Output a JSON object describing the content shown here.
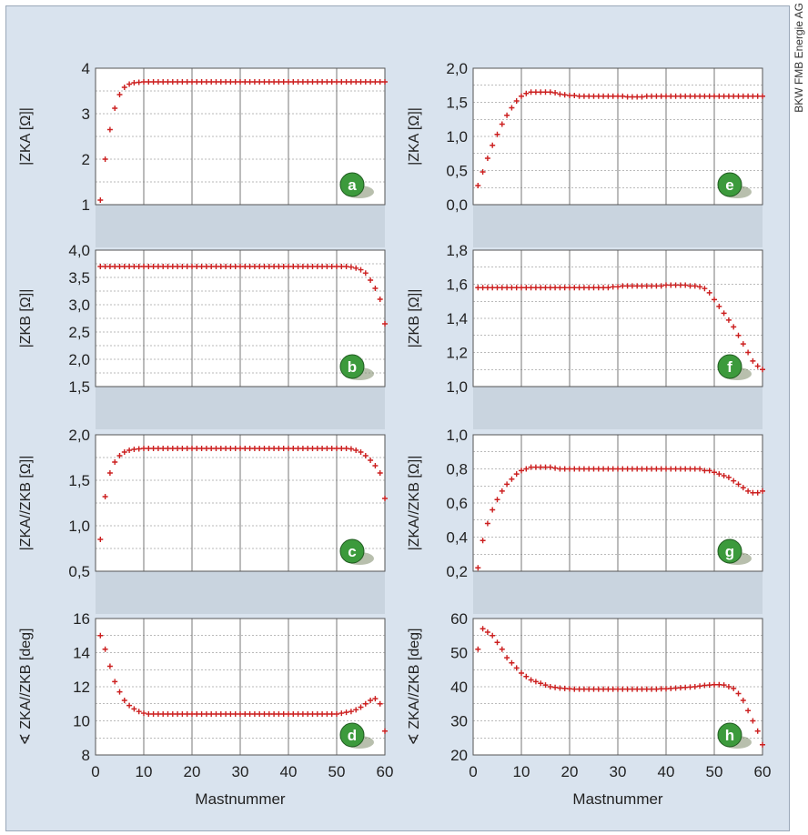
{
  "credit": "BKW FMB Energie AG",
  "colors": {
    "marker": "#cc1f1f",
    "badge": "#3c9a3c",
    "band": "#c9d4df",
    "panel": "#ffffff",
    "background": "#d9e3ee"
  },
  "chart_data": [
    {
      "id": "a",
      "type": "scatter",
      "badge": "a",
      "ylabel": "|ZKA [Ω]|",
      "ylim": [
        1,
        4
      ],
      "yticks": [
        "1",
        "2",
        "3",
        "4"
      ],
      "xlim": [
        0,
        60
      ],
      "xticks": [
        "0",
        "10",
        "20",
        "30",
        "40",
        "50",
        "60"
      ],
      "xlabel": "",
      "x": [
        1,
        2,
        3,
        4,
        5,
        6,
        7,
        8,
        9,
        10,
        11,
        12,
        13,
        14,
        15,
        16,
        17,
        18,
        19,
        20,
        21,
        22,
        23,
        24,
        25,
        26,
        27,
        28,
        29,
        30,
        31,
        32,
        33,
        34,
        35,
        36,
        37,
        38,
        39,
        40,
        41,
        42,
        43,
        44,
        45,
        46,
        47,
        48,
        49,
        50,
        51,
        52,
        53,
        54,
        55,
        56,
        57,
        58,
        59,
        60
      ],
      "y": [
        1.1,
        2.0,
        2.65,
        3.12,
        3.42,
        3.58,
        3.65,
        3.68,
        3.69,
        3.7,
        3.7,
        3.7,
        3.7,
        3.7,
        3.7,
        3.7,
        3.7,
        3.7,
        3.7,
        3.7,
        3.7,
        3.7,
        3.7,
        3.7,
        3.7,
        3.7,
        3.7,
        3.7,
        3.7,
        3.7,
        3.7,
        3.7,
        3.7,
        3.7,
        3.7,
        3.7,
        3.7,
        3.7,
        3.7,
        3.7,
        3.7,
        3.7,
        3.7,
        3.7,
        3.7,
        3.7,
        3.7,
        3.7,
        3.7,
        3.7,
        3.7,
        3.7,
        3.7,
        3.7,
        3.7,
        3.7,
        3.7,
        3.7,
        3.7,
        3.7
      ]
    },
    {
      "id": "b",
      "type": "scatter",
      "badge": "b",
      "ylabel": "|ZKB [Ω]|",
      "ylim": [
        1.5,
        4.0
      ],
      "yticks": [
        "1,5",
        "2,0",
        "2,5",
        "3,0",
        "3,5",
        "4,0"
      ],
      "xlim": [
        0,
        60
      ],
      "xticks": [
        "0",
        "10",
        "20",
        "30",
        "40",
        "50",
        "60"
      ],
      "xlabel": "",
      "x": [
        1,
        2,
        3,
        4,
        5,
        6,
        7,
        8,
        9,
        10,
        11,
        12,
        13,
        14,
        15,
        16,
        17,
        18,
        19,
        20,
        21,
        22,
        23,
        24,
        25,
        26,
        27,
        28,
        29,
        30,
        31,
        32,
        33,
        34,
        35,
        36,
        37,
        38,
        39,
        40,
        41,
        42,
        43,
        44,
        45,
        46,
        47,
        48,
        49,
        50,
        51,
        52,
        53,
        54,
        55,
        56,
        57,
        58,
        59,
        60
      ],
      "y": [
        3.7,
        3.7,
        3.7,
        3.7,
        3.7,
        3.7,
        3.7,
        3.7,
        3.7,
        3.7,
        3.7,
        3.7,
        3.7,
        3.7,
        3.7,
        3.7,
        3.7,
        3.7,
        3.7,
        3.7,
        3.7,
        3.7,
        3.7,
        3.7,
        3.7,
        3.7,
        3.7,
        3.7,
        3.7,
        3.7,
        3.7,
        3.7,
        3.7,
        3.7,
        3.7,
        3.7,
        3.7,
        3.7,
        3.7,
        3.7,
        3.7,
        3.7,
        3.7,
        3.7,
        3.7,
        3.7,
        3.7,
        3.7,
        3.7,
        3.7,
        3.7,
        3.7,
        3.69,
        3.67,
        3.64,
        3.58,
        3.45,
        3.3,
        3.1,
        2.65
      ]
    },
    {
      "id": "c",
      "type": "scatter",
      "badge": "c",
      "ylabel": "|ZKA//ZKB [Ω]|",
      "ylim": [
        0.5,
        2.0
      ],
      "yticks": [
        "0,5",
        "1,0",
        "1,5",
        "2,0"
      ],
      "xlim": [
        0,
        60
      ],
      "xticks": [
        "0",
        "10",
        "20",
        "30",
        "40",
        "50",
        "60"
      ],
      "xlabel": "",
      "x": [
        1,
        2,
        3,
        4,
        5,
        6,
        7,
        8,
        9,
        10,
        11,
        12,
        13,
        14,
        15,
        16,
        17,
        18,
        19,
        20,
        21,
        22,
        23,
        24,
        25,
        26,
        27,
        28,
        29,
        30,
        31,
        32,
        33,
        34,
        35,
        36,
        37,
        38,
        39,
        40,
        41,
        42,
        43,
        44,
        45,
        46,
        47,
        48,
        49,
        50,
        51,
        52,
        53,
        54,
        55,
        56,
        57,
        58,
        59,
        60
      ],
      "y": [
        0.85,
        1.32,
        1.58,
        1.7,
        1.77,
        1.81,
        1.83,
        1.84,
        1.845,
        1.85,
        1.85,
        1.85,
        1.85,
        1.85,
        1.85,
        1.85,
        1.85,
        1.85,
        1.85,
        1.85,
        1.85,
        1.85,
        1.85,
        1.85,
        1.85,
        1.85,
        1.85,
        1.85,
        1.85,
        1.85,
        1.85,
        1.85,
        1.85,
        1.85,
        1.85,
        1.85,
        1.85,
        1.85,
        1.85,
        1.85,
        1.85,
        1.85,
        1.85,
        1.85,
        1.85,
        1.85,
        1.85,
        1.85,
        1.85,
        1.85,
        1.85,
        1.85,
        1.845,
        1.83,
        1.81,
        1.77,
        1.72,
        1.66,
        1.58,
        1.3
      ]
    },
    {
      "id": "d",
      "type": "scatter",
      "badge": "d",
      "ylabel": "∢ ZKA//ZKB [deg]",
      "ylim": [
        8,
        16
      ],
      "yticks": [
        "8",
        "10",
        "12",
        "14",
        "16"
      ],
      "xlim": [
        0,
        60
      ],
      "xticks": [
        "0",
        "10",
        "20",
        "30",
        "40",
        "50",
        "60"
      ],
      "xlabel": "Mastnummer",
      "x": [
        1,
        2,
        3,
        4,
        5,
        6,
        7,
        8,
        9,
        10,
        11,
        12,
        13,
        14,
        15,
        16,
        17,
        18,
        19,
        20,
        21,
        22,
        23,
        24,
        25,
        26,
        27,
        28,
        29,
        30,
        31,
        32,
        33,
        34,
        35,
        36,
        37,
        38,
        39,
        40,
        41,
        42,
        43,
        44,
        45,
        46,
        47,
        48,
        49,
        50,
        51,
        52,
        53,
        54,
        55,
        56,
        57,
        58,
        59,
        60
      ],
      "y": [
        15.0,
        14.2,
        13.2,
        12.3,
        11.7,
        11.2,
        10.9,
        10.7,
        10.55,
        10.45,
        10.4,
        10.4,
        10.4,
        10.4,
        10.4,
        10.4,
        10.4,
        10.4,
        10.4,
        10.4,
        10.4,
        10.4,
        10.4,
        10.4,
        10.4,
        10.4,
        10.4,
        10.4,
        10.4,
        10.4,
        10.4,
        10.4,
        10.4,
        10.4,
        10.4,
        10.4,
        10.4,
        10.4,
        10.4,
        10.4,
        10.4,
        10.4,
        10.4,
        10.4,
        10.4,
        10.4,
        10.4,
        10.4,
        10.4,
        10.4,
        10.45,
        10.5,
        10.55,
        10.65,
        10.8,
        11.0,
        11.2,
        11.3,
        11.0,
        9.4
      ]
    },
    {
      "id": "e",
      "type": "scatter",
      "badge": "e",
      "ylabel": "|ZKA [Ω]|",
      "ylim": [
        0.0,
        2.0
      ],
      "yticks": [
        "0,0",
        "0,5",
        "1,0",
        "1,5",
        "2,0"
      ],
      "xlim": [
        0,
        60
      ],
      "xticks": [
        "0",
        "10",
        "20",
        "30",
        "40",
        "50",
        "60"
      ],
      "xlabel": "",
      "x": [
        1,
        2,
        3,
        4,
        5,
        6,
        7,
        8,
        9,
        10,
        11,
        12,
        13,
        14,
        15,
        16,
        17,
        18,
        19,
        20,
        21,
        22,
        23,
        24,
        25,
        26,
        27,
        28,
        29,
        30,
        31,
        32,
        33,
        34,
        35,
        36,
        37,
        38,
        39,
        40,
        41,
        42,
        43,
        44,
        45,
        46,
        47,
        48,
        49,
        50,
        51,
        52,
        53,
        54,
        55,
        56,
        57,
        58,
        59,
        60
      ],
      "y": [
        0.28,
        0.48,
        0.68,
        0.87,
        1.03,
        1.18,
        1.31,
        1.42,
        1.52,
        1.59,
        1.63,
        1.65,
        1.65,
        1.65,
        1.65,
        1.65,
        1.64,
        1.62,
        1.61,
        1.6,
        1.6,
        1.59,
        1.59,
        1.59,
        1.59,
        1.59,
        1.59,
        1.59,
        1.59,
        1.59,
        1.59,
        1.58,
        1.58,
        1.58,
        1.58,
        1.59,
        1.59,
        1.59,
        1.59,
        1.59,
        1.59,
        1.59,
        1.59,
        1.59,
        1.59,
        1.59,
        1.59,
        1.59,
        1.59,
        1.59,
        1.59,
        1.59,
        1.59,
        1.59,
        1.59,
        1.59,
        1.59,
        1.59,
        1.59,
        1.59
      ]
    },
    {
      "id": "f",
      "type": "scatter",
      "badge": "f",
      "ylabel": "|ZKB [Ω]|",
      "ylim": [
        1.0,
        1.8
      ],
      "yticks": [
        "1,0",
        "1,2",
        "1,4",
        "1,6",
        "1,8"
      ],
      "xlim": [
        0,
        60
      ],
      "xticks": [
        "0",
        "10",
        "20",
        "30",
        "40",
        "50",
        "60"
      ],
      "xlabel": "",
      "x": [
        1,
        2,
        3,
        4,
        5,
        6,
        7,
        8,
        9,
        10,
        11,
        12,
        13,
        14,
        15,
        16,
        17,
        18,
        19,
        20,
        21,
        22,
        23,
        24,
        25,
        26,
        27,
        28,
        29,
        30,
        31,
        32,
        33,
        34,
        35,
        36,
        37,
        38,
        39,
        40,
        41,
        42,
        43,
        44,
        45,
        46,
        47,
        48,
        49,
        50,
        51,
        52,
        53,
        54,
        55,
        56,
        57,
        58,
        59,
        60
      ],
      "y": [
        1.58,
        1.58,
        1.58,
        1.58,
        1.58,
        1.58,
        1.58,
        1.58,
        1.58,
        1.58,
        1.58,
        1.58,
        1.58,
        1.58,
        1.58,
        1.58,
        1.58,
        1.58,
        1.58,
        1.58,
        1.58,
        1.58,
        1.58,
        1.58,
        1.58,
        1.58,
        1.58,
        1.58,
        1.585,
        1.585,
        1.59,
        1.59,
        1.59,
        1.59,
        1.59,
        1.59,
        1.59,
        1.59,
        1.59,
        1.595,
        1.595,
        1.595,
        1.595,
        1.595,
        1.59,
        1.59,
        1.585,
        1.575,
        1.55,
        1.51,
        1.47,
        1.43,
        1.39,
        1.35,
        1.3,
        1.25,
        1.2,
        1.15,
        1.12,
        1.1
      ]
    },
    {
      "id": "g",
      "type": "scatter",
      "badge": "g",
      "ylabel": "|ZKA//ZKB [Ω]|",
      "ylim": [
        0.2,
        1.0
      ],
      "yticks": [
        "0,2",
        "0,4",
        "0,6",
        "0,8",
        "1,0"
      ],
      "xlim": [
        0,
        60
      ],
      "xticks": [
        "0",
        "10",
        "20",
        "30",
        "40",
        "50",
        "60"
      ],
      "xlabel": "",
      "x": [
        1,
        2,
        3,
        4,
        5,
        6,
        7,
        8,
        9,
        10,
        11,
        12,
        13,
        14,
        15,
        16,
        17,
        18,
        19,
        20,
        21,
        22,
        23,
        24,
        25,
        26,
        27,
        28,
        29,
        30,
        31,
        32,
        33,
        34,
        35,
        36,
        37,
        38,
        39,
        40,
        41,
        42,
        43,
        44,
        45,
        46,
        47,
        48,
        49,
        50,
        51,
        52,
        53,
        54,
        55,
        56,
        57,
        58,
        59,
        60
      ],
      "y": [
        0.22,
        0.38,
        0.48,
        0.56,
        0.62,
        0.67,
        0.71,
        0.74,
        0.77,
        0.79,
        0.8,
        0.81,
        0.81,
        0.81,
        0.81,
        0.81,
        0.805,
        0.8,
        0.8,
        0.8,
        0.8,
        0.8,
        0.8,
        0.8,
        0.8,
        0.8,
        0.8,
        0.8,
        0.8,
        0.8,
        0.8,
        0.8,
        0.8,
        0.8,
        0.8,
        0.8,
        0.8,
        0.8,
        0.8,
        0.8,
        0.8,
        0.8,
        0.8,
        0.8,
        0.8,
        0.8,
        0.8,
        0.79,
        0.79,
        0.78,
        0.77,
        0.76,
        0.75,
        0.73,
        0.71,
        0.69,
        0.67,
        0.66,
        0.66,
        0.67
      ]
    },
    {
      "id": "h",
      "type": "scatter",
      "badge": "h",
      "ylabel": "∢ ZKA//ZKB [deg]",
      "ylim": [
        20,
        60
      ],
      "yticks": [
        "20",
        "30",
        "40",
        "50",
        "60"
      ],
      "xlim": [
        0,
        60
      ],
      "xticks": [
        "0",
        "10",
        "20",
        "30",
        "40",
        "50",
        "60"
      ],
      "xlabel": "Mastnummer",
      "x": [
        1,
        2,
        3,
        4,
        5,
        6,
        7,
        8,
        9,
        10,
        11,
        12,
        13,
        14,
        15,
        16,
        17,
        18,
        19,
        20,
        21,
        22,
        23,
        24,
        25,
        26,
        27,
        28,
        29,
        30,
        31,
        32,
        33,
        34,
        35,
        36,
        37,
        38,
        39,
        40,
        41,
        42,
        43,
        44,
        45,
        46,
        47,
        48,
        49,
        50,
        51,
        52,
        53,
        54,
        55,
        56,
        57,
        58,
        59,
        60
      ],
      "y": [
        51,
        57,
        56,
        55,
        53,
        51,
        48.5,
        47,
        45.5,
        44,
        43,
        42,
        41.5,
        41,
        40.5,
        40,
        39.8,
        39.6,
        39.5,
        39.4,
        39.3,
        39.3,
        39.3,
        39.3,
        39.3,
        39.3,
        39.3,
        39.3,
        39.3,
        39.3,
        39.3,
        39.3,
        39.3,
        39.3,
        39.3,
        39.3,
        39.3,
        39.3,
        39.4,
        39.4,
        39.5,
        39.6,
        39.7,
        39.8,
        39.9,
        40.0,
        40.2,
        40.4,
        40.5,
        40.6,
        40.6,
        40.5,
        40.0,
        39.5,
        38,
        36,
        33,
        30,
        27,
        23
      ]
    }
  ]
}
